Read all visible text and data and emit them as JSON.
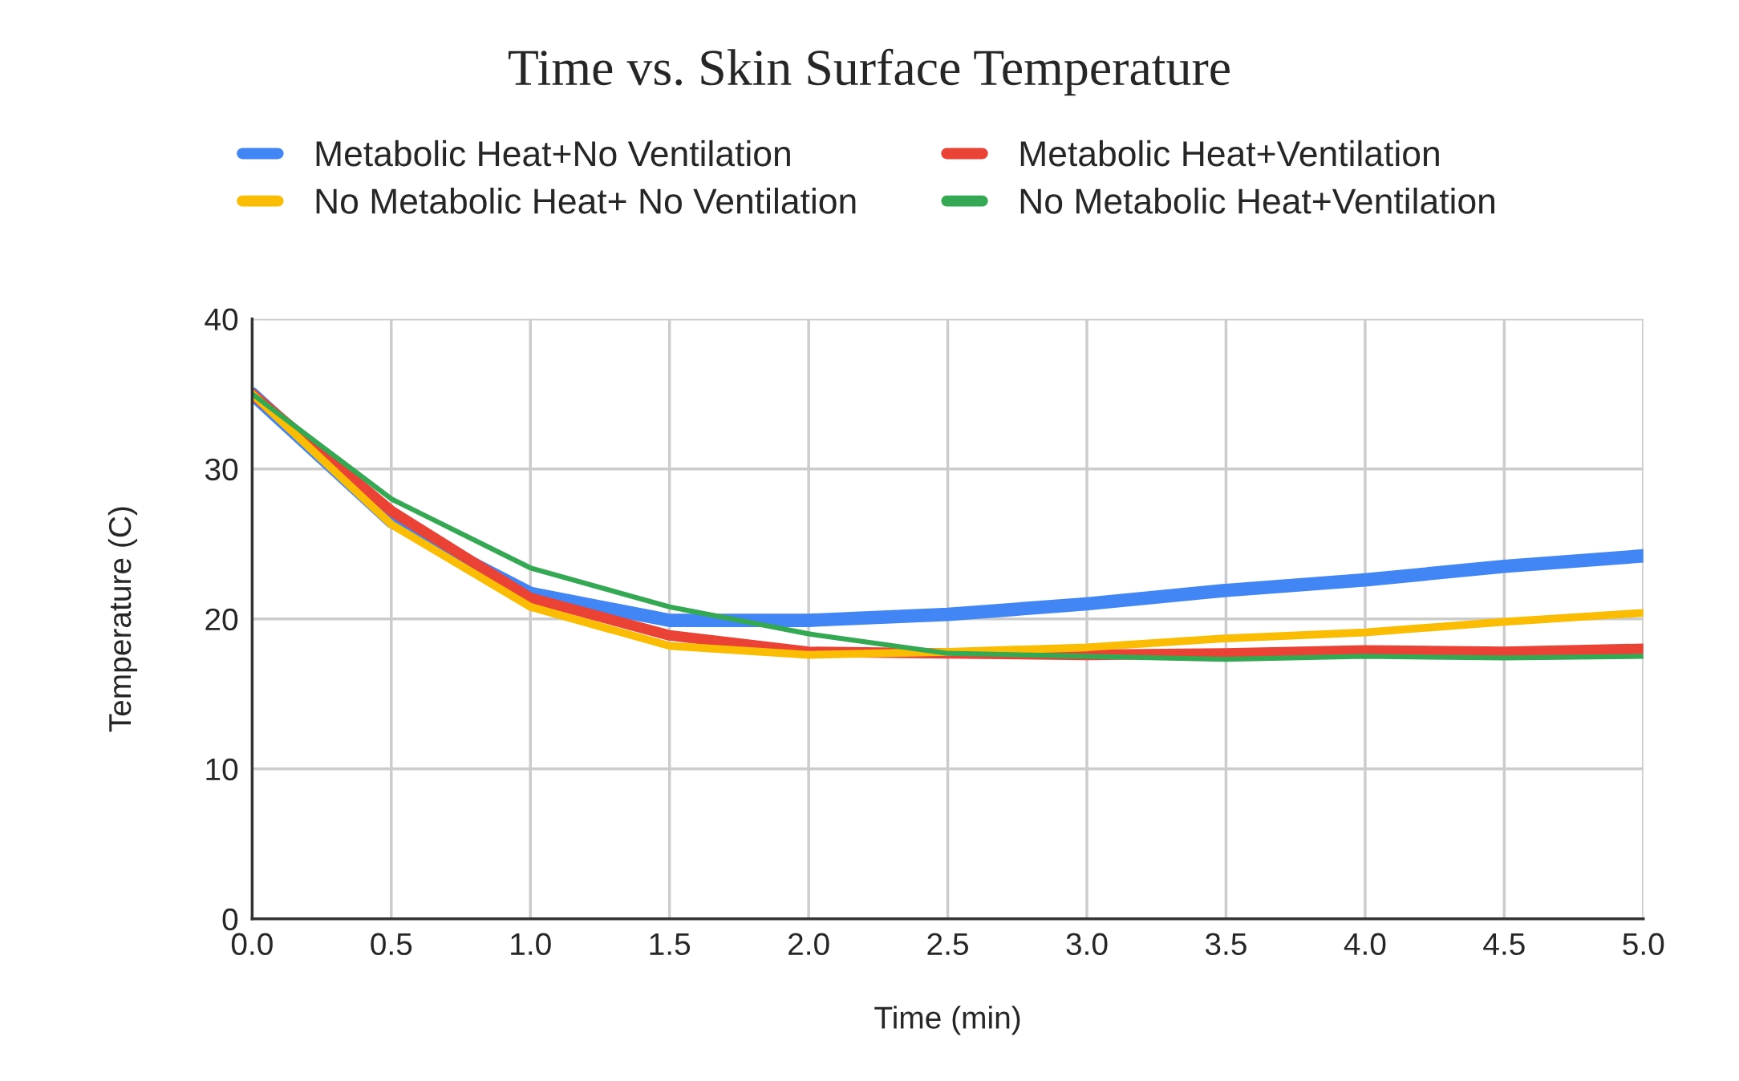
{
  "chart_data": {
    "type": "line",
    "title": "Time vs. Skin Surface Temperature",
    "xlabel": "Time (min)",
    "ylabel": "Temperature (C)",
    "x": [
      0.0,
      0.5,
      1.0,
      1.5,
      2.0,
      2.5,
      3.0,
      3.5,
      4.0,
      4.5,
      5.0
    ],
    "series": [
      {
        "name": "Metabolic Heat+No Ventilation",
        "color": "#4285f4",
        "values": [
          35,
          26.5,
          21.7,
          19.9,
          19.9,
          20.3,
          21.0,
          21.9,
          22.6,
          23.5,
          24.2
        ]
      },
      {
        "name": "Metabolic Heat+Ventilation",
        "color": "#ea4335",
        "values": [
          35,
          27.2,
          21.4,
          18.9,
          17.8,
          17.7,
          17.6,
          17.7,
          17.9,
          17.8,
          18.0
        ]
      },
      {
        "name": "No Metabolic Heat+ No Ventilation",
        "color": "#fbbc04",
        "values": [
          35,
          26.3,
          20.8,
          18.2,
          17.6,
          17.8,
          18.1,
          18.7,
          19.1,
          19.8,
          20.4
        ]
      },
      {
        "name": "No Metabolic Heat+Ventilation",
        "color": "#34a853",
        "values": [
          35,
          28.0,
          23.4,
          20.8,
          19.0,
          17.7,
          17.5,
          17.3,
          17.5,
          17.4,
          17.5
        ]
      }
    ],
    "xlim": [
      0,
      5.0
    ],
    "xticks": [
      {
        "value": 0,
        "label": "0.0"
      },
      0.5,
      {
        "value": 1,
        "label": "1.0"
      },
      1.5,
      {
        "value": 2,
        "label": "2.0"
      },
      2.5,
      {
        "value": 3,
        "label": "3.0"
      },
      3.5,
      {
        "value": 4,
        "label": "4.0"
      },
      4.5,
      {
        "value": 5,
        "label": "5.0"
      }
    ],
    "ylim": [
      0,
      40
    ],
    "yticks": [
      0,
      10,
      20,
      30,
      40
    ],
    "grid": true,
    "legend": "top",
    "marker": "none",
    "line_style": "solid"
  }
}
